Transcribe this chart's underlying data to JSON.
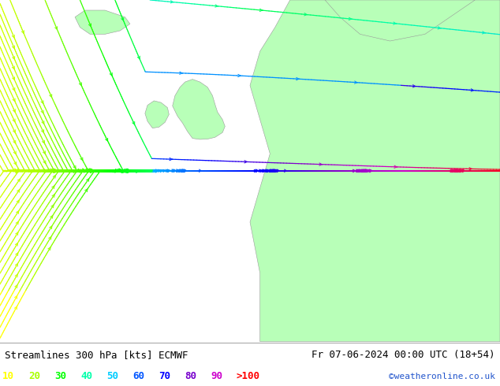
{
  "title_left": "Streamlines 300 hPa [kts] ECMWF",
  "title_right": "Fr 07-06-2024 00:00 UTC (18+54)",
  "credit": "©weatheronline.co.uk",
  "legend_values": [
    "10",
    "20",
    "30",
    "40",
    "50",
    "60",
    "70",
    "80",
    "90",
    ">100"
  ],
  "legend_colors": [
    "#ffff00",
    "#aaff00",
    "#00ff00",
    "#00ffaa",
    "#00ccff",
    "#0055ff",
    "#0000ff",
    "#7700cc",
    "#cc00cc",
    "#ff0000"
  ],
  "bg_color": "#c8c8c8",
  "land_color": "#b8ffb8",
  "font_size_title": 9,
  "font_size_legend": 9,
  "font_size_credit": 8,
  "streamline_color_stops": [
    {
      "speed": 10,
      "color": "#ffff00"
    },
    {
      "speed": 20,
      "color": "#aaff00"
    },
    {
      "speed": 30,
      "color": "#00ff00"
    },
    {
      "speed": 40,
      "color": "#00ffaa"
    },
    {
      "speed": 50,
      "color": "#00ccff"
    },
    {
      "speed": 60,
      "color": "#0055ff"
    },
    {
      "speed": 70,
      "color": "#0000ff"
    },
    {
      "speed": 80,
      "color": "#7700cc"
    },
    {
      "speed": 90,
      "color": "#cc00cc"
    },
    {
      "speed": 100,
      "color": "#ff0000"
    }
  ]
}
